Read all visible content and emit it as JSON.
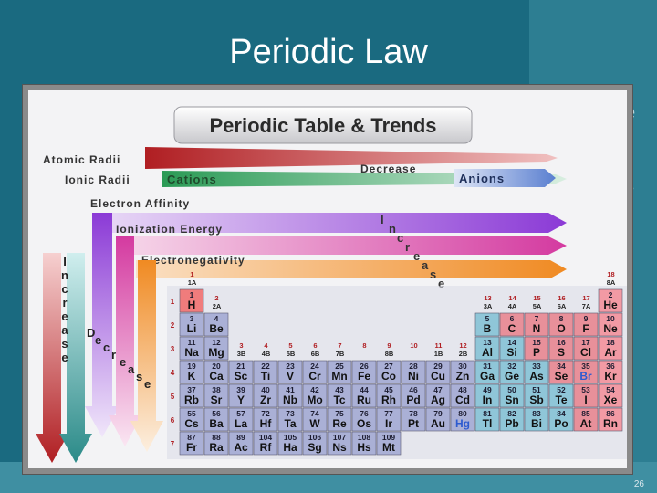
{
  "slide": {
    "title": "Periodic Law",
    "slide_number": "26",
    "edge_letters": [
      "e",
      "s"
    ]
  },
  "figure": {
    "title": "Periodic Table & Trends",
    "trends": {
      "atomic_radii": "Atomic Radii",
      "ionic_radii": "Ionic Radii",
      "cations": "Cations",
      "decrease": "Decrease",
      "anions": "Anions",
      "electron_affinity": "Electron Affinity",
      "ionization_energy": "Ionization Energy",
      "electronegativity": "Electronegativity",
      "increase_diag": [
        "I",
        "n",
        "c",
        "r",
        "e",
        "a",
        "s",
        "e"
      ],
      "increase_vert": [
        "I",
        "n",
        "c",
        "r",
        "e",
        "a",
        "s",
        "e"
      ],
      "decrease_diag": [
        "D",
        "e",
        "c",
        "r",
        "e",
        "a",
        "s",
        "e"
      ]
    },
    "group_labels": {
      "g1": [
        "1",
        "1A"
      ],
      "g2": [
        "2",
        "2A"
      ],
      "g3_12": [
        [
          "3",
          "3B"
        ],
        [
          "4",
          "4B"
        ],
        [
          "5",
          "5B"
        ],
        [
          "6",
          "6B"
        ],
        [
          "7",
          "7B"
        ],
        [
          "8",
          ""
        ],
        [
          "9",
          "8B"
        ],
        [
          "10",
          ""
        ],
        [
          "11",
          "1B"
        ],
        [
          "12",
          "2B"
        ]
      ],
      "g13_17": [
        [
          "13",
          "3A"
        ],
        [
          "14",
          "4A"
        ],
        [
          "15",
          "5A"
        ],
        [
          "16",
          "6A"
        ],
        [
          "17",
          "7A"
        ]
      ],
      "g18": [
        "18",
        "8A"
      ]
    },
    "period_labels": [
      "1",
      "2",
      "3",
      "4",
      "5",
      "6",
      "7"
    ],
    "elements": [
      [
        "1",
        "H",
        1,
        1
      ],
      [
        "2",
        "He",
        1,
        18
      ],
      [
        "3",
        "Li",
        2,
        1
      ],
      [
        "4",
        "Be",
        2,
        2
      ],
      [
        "5",
        "B",
        2,
        13
      ],
      [
        "6",
        "C",
        2,
        14
      ],
      [
        "7",
        "N",
        2,
        15
      ],
      [
        "8",
        "O",
        2,
        16
      ],
      [
        "9",
        "F",
        2,
        17
      ],
      [
        "10",
        "Ne",
        2,
        18
      ],
      [
        "11",
        "Na",
        3,
        1
      ],
      [
        "12",
        "Mg",
        3,
        2
      ],
      [
        "13",
        "Al",
        3,
        13
      ],
      [
        "14",
        "Si",
        3,
        14
      ],
      [
        "15",
        "P",
        3,
        15
      ],
      [
        "16",
        "S",
        3,
        16
      ],
      [
        "17",
        "Cl",
        3,
        17
      ],
      [
        "18",
        "Ar",
        3,
        18
      ],
      [
        "19",
        "K",
        4,
        1
      ],
      [
        "20",
        "Ca",
        4,
        2
      ],
      [
        "21",
        "Sc",
        4,
        3
      ],
      [
        "22",
        "Ti",
        4,
        4
      ],
      [
        "23",
        "V",
        4,
        5
      ],
      [
        "24",
        "Cr",
        4,
        6
      ],
      [
        "25",
        "Mn",
        4,
        7
      ],
      [
        "26",
        "Fe",
        4,
        8
      ],
      [
        "27",
        "Co",
        4,
        9
      ],
      [
        "28",
        "Ni",
        4,
        10
      ],
      [
        "29",
        "Cu",
        4,
        11
      ],
      [
        "30",
        "Zn",
        4,
        12
      ],
      [
        "31",
        "Ga",
        4,
        13
      ],
      [
        "32",
        "Ge",
        4,
        14
      ],
      [
        "33",
        "As",
        4,
        15
      ],
      [
        "34",
        "Se",
        4,
        16
      ],
      [
        "35",
        "Br",
        4,
        17
      ],
      [
        "36",
        "Kr",
        4,
        18
      ],
      [
        "37",
        "Rb",
        5,
        1
      ],
      [
        "38",
        "Sr",
        5,
        2
      ],
      [
        "39",
        "Y",
        5,
        3
      ],
      [
        "40",
        "Zr",
        5,
        4
      ],
      [
        "41",
        "Nb",
        5,
        5
      ],
      [
        "42",
        "Mo",
        5,
        6
      ],
      [
        "43",
        "Tc",
        5,
        7
      ],
      [
        "44",
        "Ru",
        5,
        8
      ],
      [
        "45",
        "Rh",
        5,
        9
      ],
      [
        "46",
        "Pd",
        5,
        10
      ],
      [
        "47",
        "Ag",
        5,
        11
      ],
      [
        "48",
        "Cd",
        5,
        12
      ],
      [
        "49",
        "In",
        5,
        13
      ],
      [
        "50",
        "Sn",
        5,
        14
      ],
      [
        "51",
        "Sb",
        5,
        15
      ],
      [
        "52",
        "Te",
        5,
        16
      ],
      [
        "53",
        "I",
        5,
        17
      ],
      [
        "54",
        "Xe",
        5,
        18
      ],
      [
        "55",
        "Cs",
        6,
        1
      ],
      [
        "56",
        "Ba",
        6,
        2
      ],
      [
        "57",
        "La",
        6,
        3
      ],
      [
        "72",
        "Hf",
        6,
        4
      ],
      [
        "73",
        "Ta",
        6,
        5
      ],
      [
        "74",
        "W",
        6,
        6
      ],
      [
        "75",
        "Re",
        6,
        7
      ],
      [
        "76",
        "Os",
        6,
        8
      ],
      [
        "77",
        "Ir",
        6,
        9
      ],
      [
        "78",
        "Pt",
        6,
        10
      ],
      [
        "79",
        "Au",
        6,
        11
      ],
      [
        "80",
        "Hg",
        6,
        12
      ],
      [
        "81",
        "Tl",
        6,
        13
      ],
      [
        "82",
        "Pb",
        6,
        14
      ],
      [
        "83",
        "Bi",
        6,
        15
      ],
      [
        "84",
        "Po",
        6,
        16
      ],
      [
        "85",
        "At",
        6,
        17
      ],
      [
        "86",
        "Rn",
        6,
        18
      ],
      [
        "87",
        "Fr",
        7,
        1
      ],
      [
        "88",
        "Ra",
        7,
        2
      ],
      [
        "89",
        "Ac",
        7,
        3
      ],
      [
        "104",
        "Rf",
        7,
        4
      ],
      [
        "105",
        "Ha",
        7,
        5
      ],
      [
        "106",
        "Sg",
        7,
        6
      ],
      [
        "107",
        "Ns",
        7,
        7
      ],
      [
        "108",
        "Hs",
        7,
        8
      ],
      [
        "109",
        "Mt",
        7,
        9
      ]
    ],
    "colors": {
      "atomic_radii": "#c42a2a",
      "cations": "#2a9a55",
      "anions": "#5a7fd0",
      "electron_affinity": "#8b3ad6",
      "ionization_energy": "#d43aa0",
      "electronegativity": "#f08a22",
      "vert_red": "#b8262a",
      "vert_teal": "#2a8a88",
      "metal_cell": "#aab0d6",
      "nonmetal_cell": "#e8909a",
      "metalloid_cell": "#8fc6d8",
      "noble_cell": "#f29aa4",
      "hydrogen_cell": "#f07c7c"
    }
  }
}
